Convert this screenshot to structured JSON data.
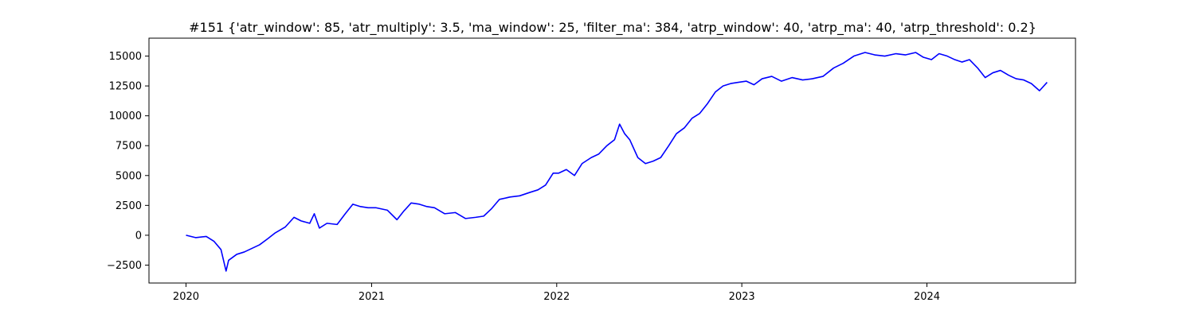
{
  "chart_data": {
    "type": "line",
    "title": "#151 {'atr_window': 85, 'atr_multiply': 3.5, 'ma_window': 25, 'filter_ma': 384, 'atrp_window': 40, 'atrp_ma': 40, 'atrp_threshold': 0.2}",
    "xlabel": "",
    "ylabel": "",
    "xlim": [
      "2019-10-20",
      "2024-10-20"
    ],
    "ylim": [
      -4000,
      16500
    ],
    "x_ticks": [
      "2020",
      "2021",
      "2022",
      "2023",
      "2024"
    ],
    "y_ticks": [
      -2500,
      0,
      2500,
      5000,
      7500,
      10000,
      12500,
      15000
    ],
    "y_tick_labels": [
      "−2500",
      "0",
      "2500",
      "5000",
      "7500",
      "10000",
      "12500",
      "15000"
    ],
    "grid": false,
    "series": [
      {
        "color": "#0000ff",
        "x": [
          "2020-01-01",
          "2020-01-20",
          "2020-02-10",
          "2020-02-25",
          "2020-03-10",
          "2020-03-20",
          "2020-03-25",
          "2020-04-10",
          "2020-04-25",
          "2020-05-10",
          "2020-05-25",
          "2020-06-10",
          "2020-06-25",
          "2020-07-15",
          "2020-08-01",
          "2020-08-15",
          "2020-09-01",
          "2020-09-10",
          "2020-09-20",
          "2020-10-05",
          "2020-10-25",
          "2020-11-10",
          "2020-11-25",
          "2020-12-10",
          "2020-12-25",
          "2021-01-10",
          "2021-02-01",
          "2021-02-20",
          "2021-03-05",
          "2021-03-20",
          "2021-04-05",
          "2021-04-20",
          "2021-05-05",
          "2021-05-25",
          "2021-06-15",
          "2021-07-05",
          "2021-07-25",
          "2021-08-10",
          "2021-08-25",
          "2021-09-10",
          "2021-10-01",
          "2021-10-20",
          "2021-11-10",
          "2021-11-25",
          "2021-12-10",
          "2021-12-25",
          "2022-01-05",
          "2022-01-20",
          "2022-02-05",
          "2022-02-20",
          "2022-03-10",
          "2022-03-25",
          "2022-04-10",
          "2022-04-25",
          "2022-05-05",
          "2022-05-15",
          "2022-05-25",
          "2022-06-10",
          "2022-06-25",
          "2022-07-10",
          "2022-07-25",
          "2022-08-10",
          "2022-08-25",
          "2022-09-10",
          "2022-09-25",
          "2022-10-10",
          "2022-10-25",
          "2022-11-10",
          "2022-11-25",
          "2022-12-10",
          "2022-12-25",
          "2023-01-10",
          "2023-01-25",
          "2023-02-10",
          "2023-03-01",
          "2023-03-20",
          "2023-04-10",
          "2023-05-01",
          "2023-05-20",
          "2023-06-10",
          "2023-07-01",
          "2023-07-20",
          "2023-08-10",
          "2023-09-01",
          "2023-09-20",
          "2023-10-10",
          "2023-11-01",
          "2023-11-20",
          "2023-12-10",
          "2023-12-25",
          "2024-01-10",
          "2024-01-25",
          "2024-02-10",
          "2024-02-25",
          "2024-03-10",
          "2024-03-25",
          "2024-04-10",
          "2024-04-25",
          "2024-05-10",
          "2024-05-25",
          "2024-06-10",
          "2024-06-25",
          "2024-07-10",
          "2024-07-25",
          "2024-08-10",
          "2024-08-25"
        ],
        "y": [
          0,
          -200,
          -100,
          -500,
          -1200,
          -3000,
          -2100,
          -1600,
          -1400,
          -1100,
          -800,
          -300,
          200,
          700,
          1500,
          1200,
          1000,
          1800,
          600,
          1000,
          900,
          1800,
          2600,
          2400,
          2300,
          2300,
          2100,
          1300,
          2000,
          2700,
          2600,
          2400,
          2300,
          1800,
          1900,
          1400,
          1500,
          1600,
          2200,
          3000,
          3200,
          3300,
          3600,
          3800,
          4200,
          5200,
          5200,
          5500,
          5000,
          6000,
          6500,
          6800,
          7500,
          8000,
          9300,
          8500,
          8000,
          6500,
          6000,
          6200,
          6500,
          7500,
          8500,
          9000,
          9800,
          10200,
          11000,
          12000,
          12500,
          12700,
          12800,
          12900,
          12600,
          13100,
          13300,
          12900,
          13200,
          13000,
          13100,
          13300,
          14000,
          14400,
          15000,
          15300,
          15100,
          15000,
          15200,
          15100,
          15300,
          14900,
          14700,
          15200,
          15000,
          14700,
          14500,
          14700,
          14000,
          13200,
          13600,
          13800,
          13400,
          13100,
          13000,
          12700,
          12100,
          12800
        ]
      }
    ]
  }
}
